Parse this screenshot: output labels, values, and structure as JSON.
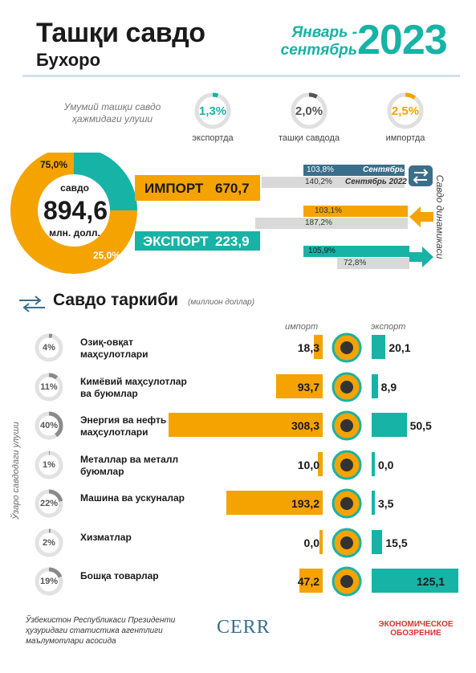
{
  "header": {
    "title": "Ташқи савдо",
    "subtitle": "Бухоро",
    "period": "Январь - сентябрь",
    "year": "2023"
  },
  "share": {
    "label": "Умумий ташқи савдо ҳажмидаги улуши",
    "items": [
      {
        "value": "1,3%",
        "pct": 1.3,
        "label": "экспортда",
        "color": "#16b3a6"
      },
      {
        "value": "2,0%",
        "pct": 2.0,
        "label": "ташқи савдода",
        "color": "#555555"
      },
      {
        "value": "2,5%",
        "pct": 2.5,
        "label": "импортда",
        "color": "#f5a300"
      }
    ]
  },
  "totals": {
    "center_label": "савдо",
    "center_value": "894,6",
    "center_unit": "млн. долл.",
    "import_share_label": "75,0%",
    "export_share_label": "25,0%",
    "import_share": 75.0,
    "export_share": 25.0,
    "import_label": "ИМПОРТ",
    "import_value": "670,7",
    "export_label": "ЭКСПОРТ",
    "export_value": "223,9"
  },
  "dynamics": {
    "side_label": "Савдо динамикаси",
    "trade": {
      "current": "103,8%",
      "current_tag": "Сентябрь",
      "previous": "140,2%",
      "previous_tag": "Сентябрь 2022"
    },
    "import": {
      "current": "103,1%",
      "previous": "187,2%"
    },
    "export": {
      "current": "105,9%",
      "previous": "72,8%"
    }
  },
  "composition": {
    "title": "Савдо таркиби",
    "unit": "(миллион доллар)",
    "import_header": "импорт",
    "export_header": "экспорт",
    "side_label": "Ўзаро савдодаги улуши",
    "rows": [
      {
        "pct": "4%",
        "share": 4,
        "name": "Озиқ-овқат маҳсулотлари",
        "import": "18,3",
        "import_v": 18.3,
        "export": "20,1",
        "export_v": 20.1,
        "icon": "food-icon"
      },
      {
        "pct": "11%",
        "share": 11,
        "name": "Кимёвий маҳсулотлар ва буюмлар",
        "import": "93,7",
        "import_v": 93.7,
        "export": "8,9",
        "export_v": 8.9,
        "icon": "chemistry-icon"
      },
      {
        "pct": "40%",
        "share": 40,
        "name": "Энергия ва нефть маҳсулотлари",
        "import": "308,3",
        "import_v": 308.3,
        "export": "50,5",
        "export_v": 50.5,
        "icon": "oil-barrel-icon"
      },
      {
        "pct": "1%",
        "share": 1,
        "name": "Металлар ва металл буюмлар",
        "import": "10,0",
        "import_v": 10.0,
        "export": "0,0",
        "export_v": 0.0,
        "icon": "metal-beam-icon"
      },
      {
        "pct": "22%",
        "share": 22,
        "name": "Машина ва ускуналар",
        "import": "193,2",
        "import_v": 193.2,
        "export": "3,5",
        "export_v": 3.5,
        "icon": "gears-icon"
      },
      {
        "pct": "2%",
        "share": 2,
        "name": "Хизматлар",
        "import": "0,0",
        "import_v": 0.0,
        "export": "15,5",
        "export_v": 15.5,
        "icon": "tools-icon"
      },
      {
        "pct": "19%",
        "share": 19,
        "name": "Бошқа товарлар",
        "import": "47,2",
        "import_v": 47.2,
        "export": "125,1",
        "export_v": 125.1,
        "icon": "basket-icon"
      }
    ]
  },
  "footer": {
    "source": "Ўзбекистон Республикаси Президенти ҳузуридаги статистика агентлиги маълумотлари асосида",
    "logo_center": "CERR",
    "logo_right": "ЭКОНОМИЧЕСКОЕ ОБОЗРЕНИЕ"
  },
  "colors": {
    "import": "#f5a300",
    "export": "#16b3a6",
    "gray": "#d9d9d9",
    "dark": "#3a6e8a"
  },
  "chart_data": {
    "type": "bar",
    "title": "Савдо таркиби",
    "categories": [
      "Озиқ-овқат маҳсулотлари",
      "Кимёвий маҳсулотлар ва буюмлар",
      "Энергия ва нефть маҳсулотлари",
      "Металлар ва металл буюмлар",
      "Машина ва ускуналар",
      "Хизматлар",
      "Бошқа товарлар"
    ],
    "series": [
      {
        "name": "импорт",
        "values": [
          18.3,
          93.7,
          308.3,
          10.0,
          193.2,
          0.0,
          47.2
        ]
      },
      {
        "name": "экспорт",
        "values": [
          20.1,
          8.9,
          50.5,
          0.0,
          3.5,
          15.5,
          125.1
        ]
      }
    ],
    "shares": [
      4,
      11,
      40,
      1,
      22,
      2,
      19
    ],
    "ylabel": "(миллион доллар)"
  }
}
